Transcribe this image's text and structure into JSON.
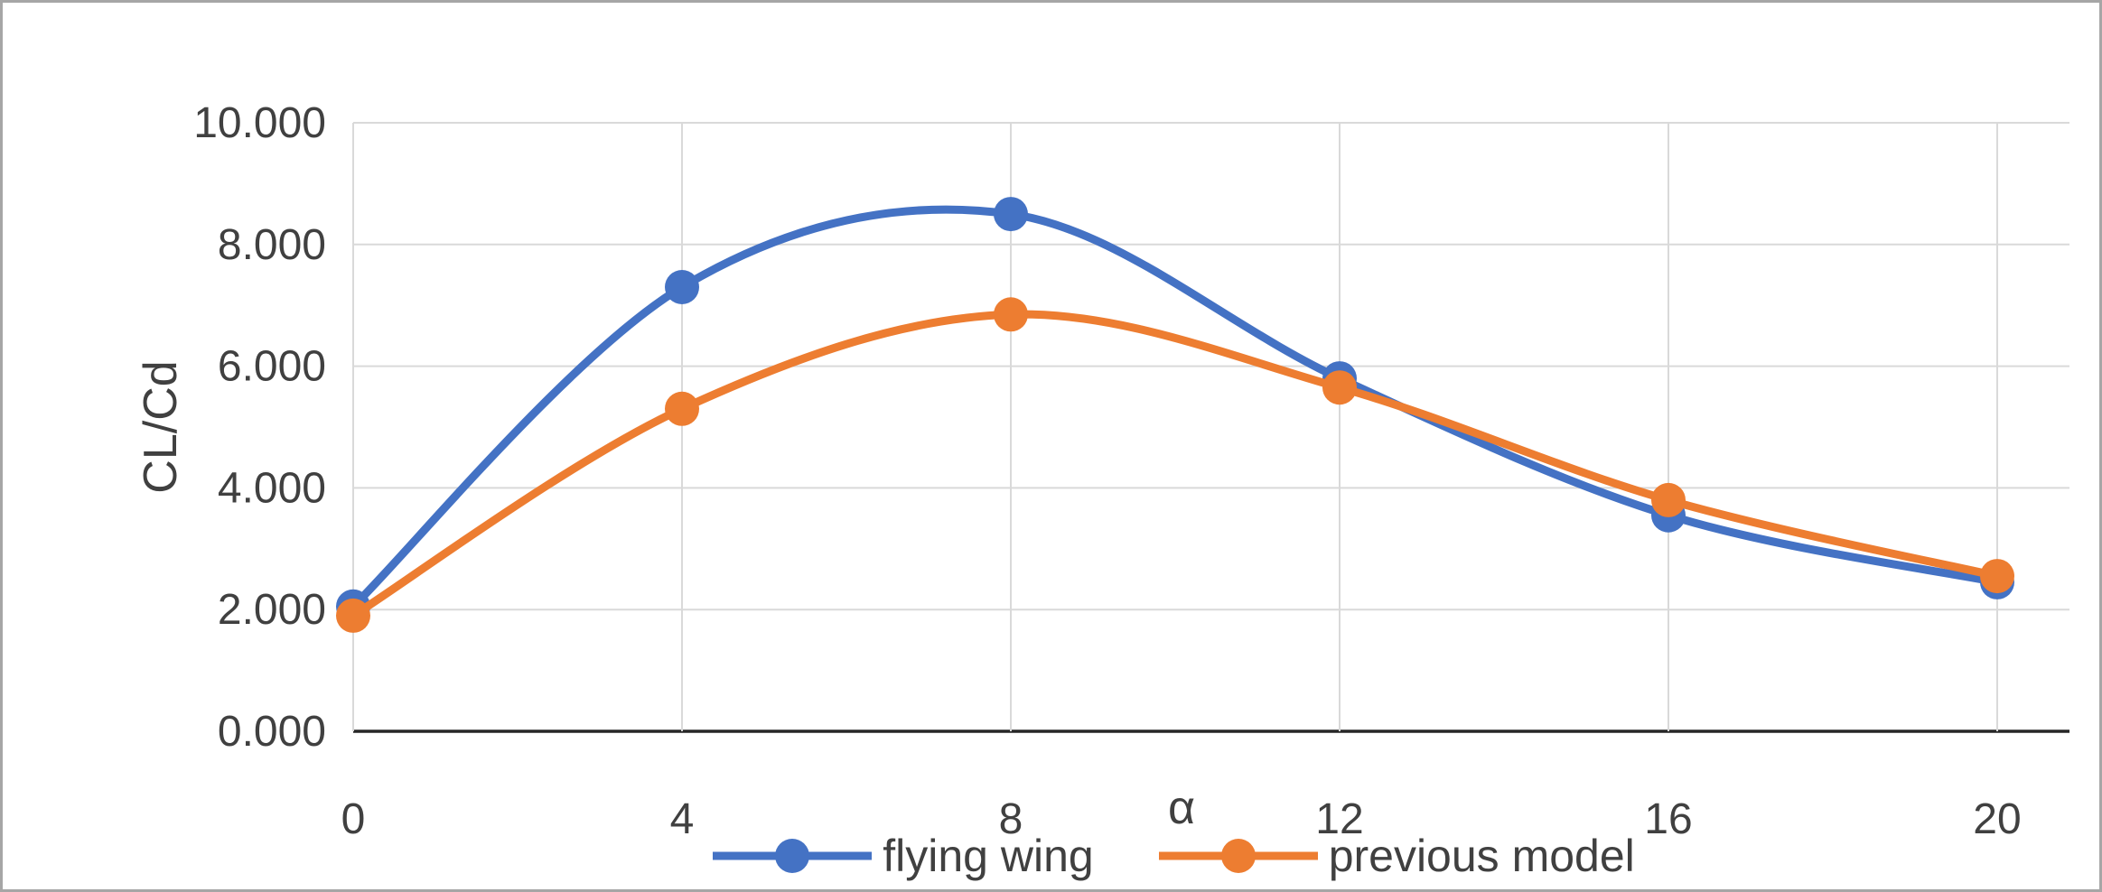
{
  "figure": {
    "background": "#ffffff",
    "border_color": "#a6a6a6"
  },
  "chart_data": {
    "type": "line",
    "title": "",
    "xlabel": "α",
    "ylabel": "CL/Cd",
    "x": [
      0,
      4,
      8,
      12,
      16,
      20
    ],
    "xtick_labels": [
      "0",
      "4",
      "8",
      "12",
      "16",
      "20"
    ],
    "ylim": [
      0,
      10
    ],
    "yticks": [
      0,
      2,
      4,
      6,
      8,
      10
    ],
    "ytick_labels": [
      "0.000",
      "2.000",
      "4.000",
      "6.000",
      "8.000",
      "10.000"
    ],
    "series": [
      {
        "name": "flying wing",
        "color": "#4472c4",
        "values": [
          2.05,
          7.3,
          8.5,
          5.8,
          3.55,
          2.45
        ]
      },
      {
        "name": "previous model",
        "color": "#ed7d31",
        "values": [
          1.9,
          5.3,
          6.85,
          5.65,
          3.8,
          2.55
        ]
      }
    ],
    "grid": true,
    "gridline_color": "#d9d9d9",
    "axis_line_color": "#262626",
    "tick_label_color": "#404040",
    "legend_position": "bottom",
    "smooth": true,
    "marker": "circle"
  }
}
